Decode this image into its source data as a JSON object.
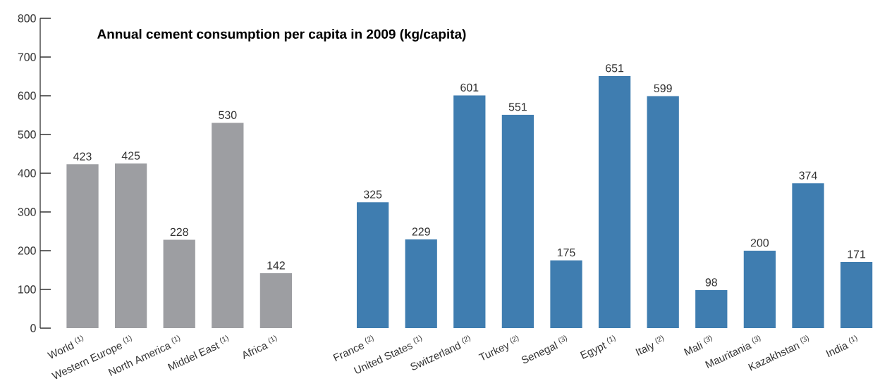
{
  "chart_data": {
    "type": "bar",
    "title": "Annual cement consumption per capita in 2009 (kg/capita)",
    "categories": [
      "World $^{(1)}$",
      "Western Europe $^{(1)}$",
      "North America $^{(1)}$",
      "Middel East $^{(1)}$",
      "Africa $^{(1)}$",
      null,
      "France $^{(2)}$",
      "United States $^{(1)}$",
      "Switzerland $^{(2)}$",
      "Turkey $^{(2)}$",
      "Senegal $^{(3)}$",
      "Egypt $^{(1)}$",
      "Italy $^{(2)}$",
      "Mali $^{(3)}$",
      "Mauritania $^{(3)}$",
      "Kazakhstan $^{(3)}$",
      "India $^{(1)}$"
    ],
    "values": [
      423,
      425,
      228,
      530,
      142,
      null,
      325,
      229,
      601,
      551,
      175,
      651,
      599,
      98,
      200,
      374,
      171
    ],
    "colors": [
      "#9d9ea2",
      "#9d9ea2",
      "#9d9ea2",
      "#9d9ea2",
      "#9d9ea2",
      "#9d9ea2",
      "#3f7db0",
      "#3f7db0",
      "#3f7db0",
      "#3f7db0",
      "#3f7db0",
      "#3f7db0",
      "#3f7db0",
      "#3f7db0",
      "#3f7db0",
      "#3f7db0",
      "#3f7db0"
    ],
    "ylim": [
      0,
      800
    ],
    "yticks": [
      0,
      100,
      200,
      300,
      400,
      500,
      600,
      700,
      800
    ],
    "data_labels": true
  }
}
